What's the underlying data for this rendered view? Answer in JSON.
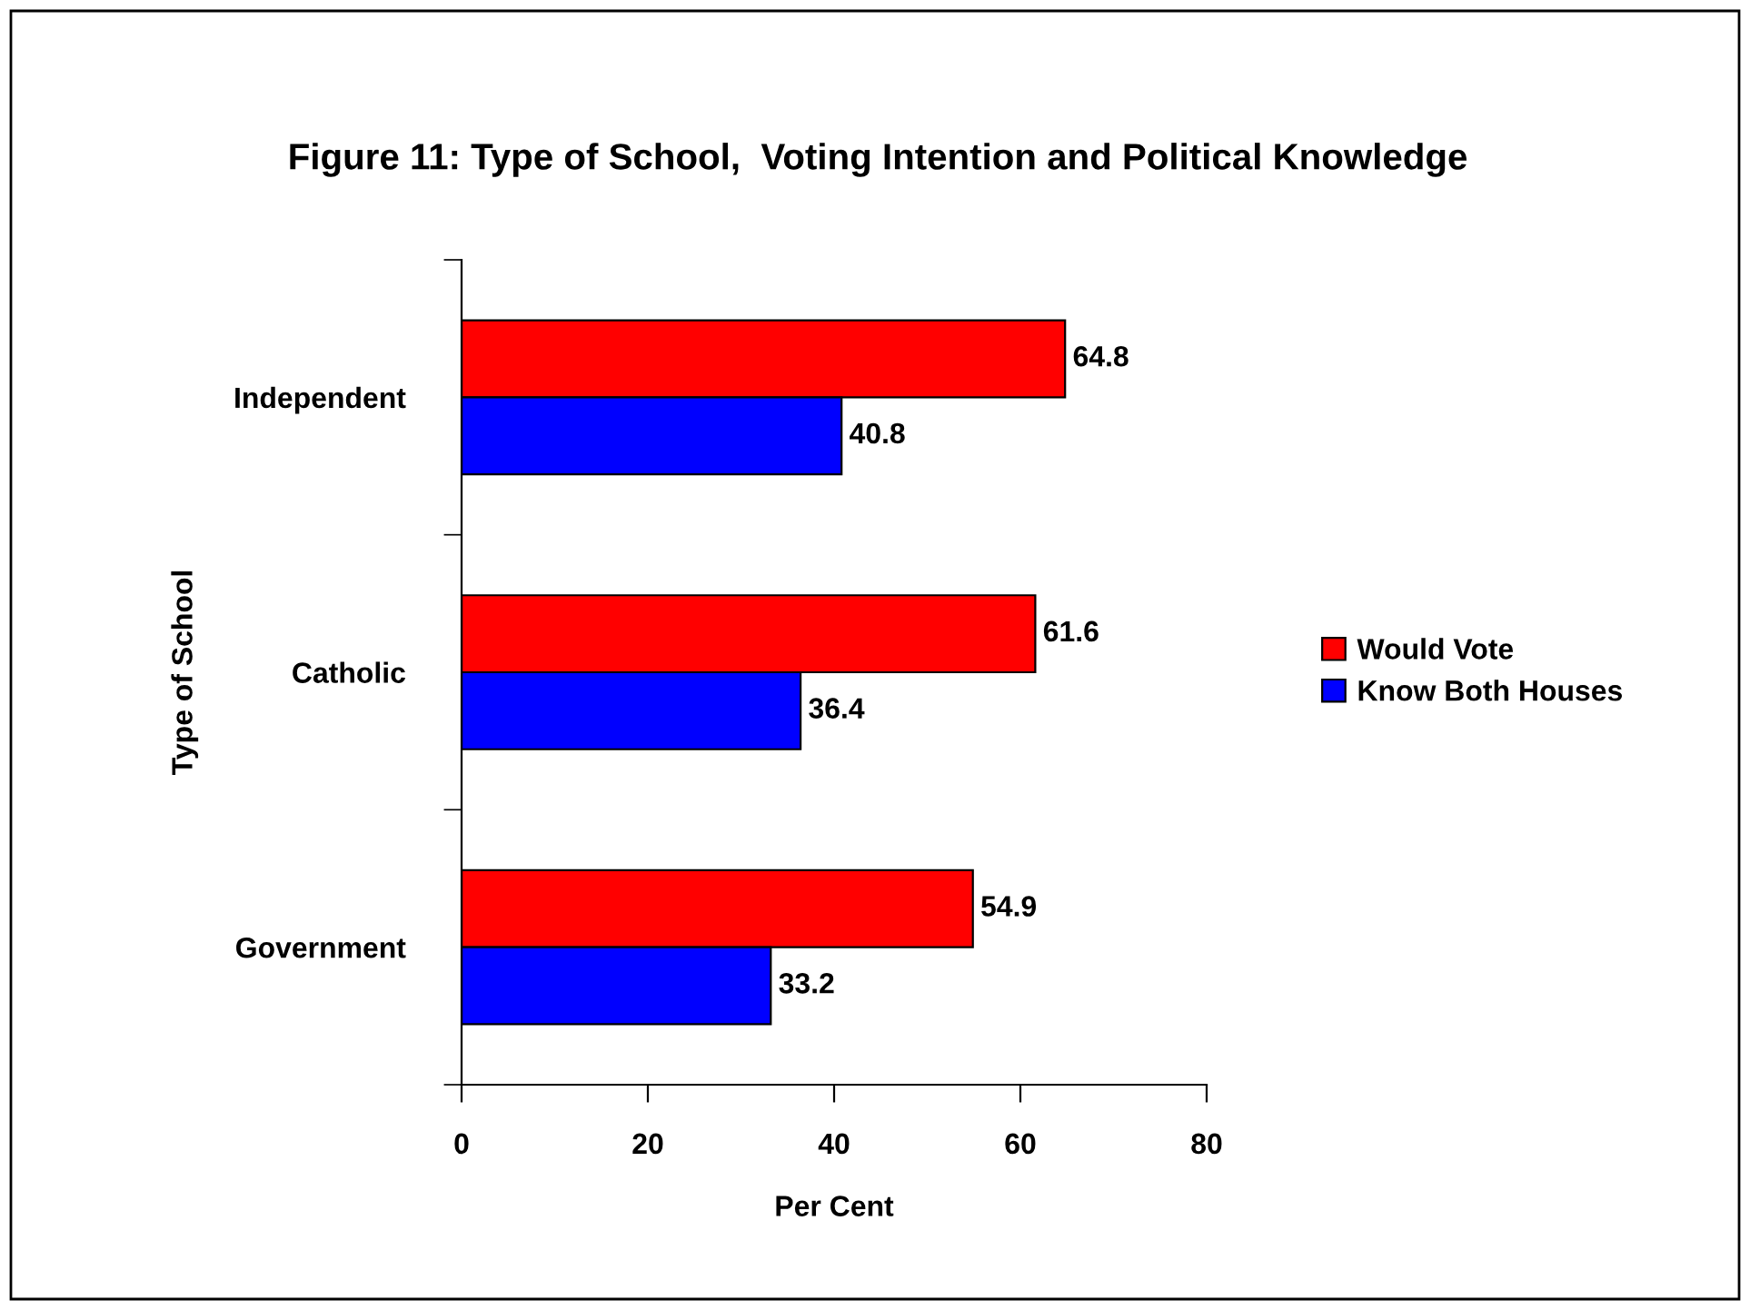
{
  "chart_data": {
    "type": "bar",
    "orientation": "horizontal",
    "title": "Figure 11: Type of School,  Voting Intention and Political Knowledge",
    "xlabel": "Per Cent",
    "ylabel": "Type of School",
    "categories": [
      "Independent",
      "Catholic",
      "Government"
    ],
    "series": [
      {
        "name": "Would Vote",
        "color": "#ff0000",
        "values": [
          64.8,
          61.6,
          54.9
        ]
      },
      {
        "name": "Know Both Houses",
        "color": "#0000ff",
        "values": [
          40.8,
          36.4,
          33.2
        ]
      }
    ],
    "xlim": [
      0,
      80
    ],
    "xticks": [
      0,
      20,
      40,
      60,
      80
    ],
    "grid": false,
    "legend": "right",
    "data_labels": true
  }
}
